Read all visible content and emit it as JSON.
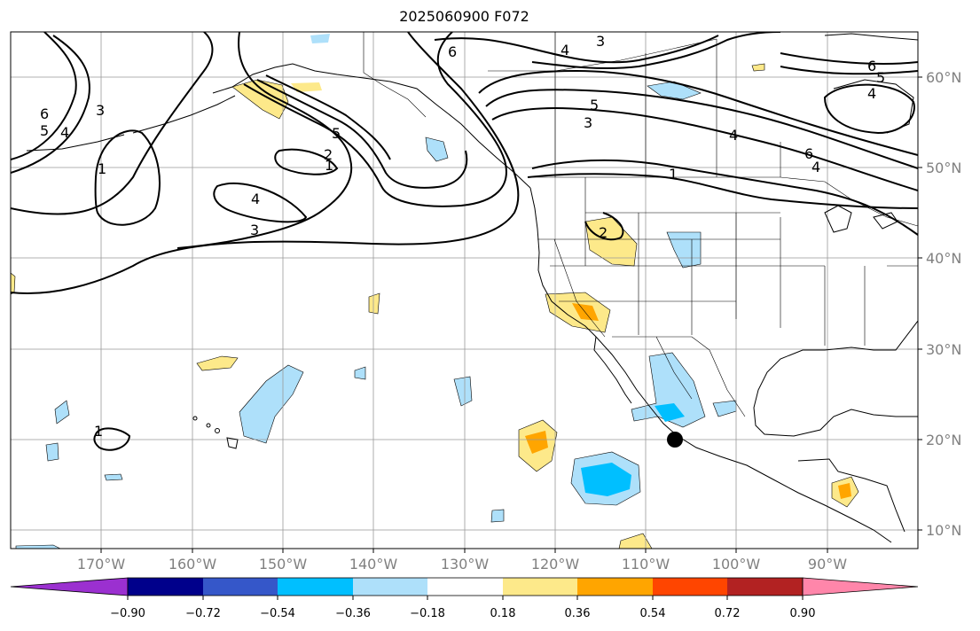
{
  "title": "2025060900 F072",
  "map": {
    "lon_range": [
      -180,
      -80
    ],
    "lat_range": [
      8,
      65
    ],
    "grid": true,
    "lat_labels": [
      "10°N",
      "20°N",
      "30°N",
      "40°N",
      "50°N",
      "60°N"
    ],
    "lon_labels": [
      "170°W",
      "160°W",
      "150°W",
      "140°W",
      "130°W",
      "120°W",
      "110°W",
      "100°W",
      "90°W"
    ],
    "contour_labels": [
      "6",
      "5",
      "4",
      "3",
      "1",
      "5",
      "2",
      "1",
      "4",
      "3",
      "6",
      "4",
      "3",
      "6",
      "5",
      "4",
      "5",
      "3",
      "6",
      "4",
      "1",
      "2",
      "1",
      "4"
    ],
    "marker": {
      "lon": -107,
      "lat": 20
    }
  },
  "colorbar": {
    "ticks": [
      "−0.90",
      "−0.72",
      "−0.54",
      "−0.36",
      "−0.18",
      "0.18",
      "0.36",
      "0.54",
      "0.72",
      "0.90"
    ],
    "colors": [
      "#9b30d0",
      "#00008b",
      "#3557c9",
      "#00bfff",
      "#aee0fa",
      "#ffffff",
      "#fde98a",
      "#ffa500",
      "#ff4500",
      "#b22222",
      "#ff86aa"
    ]
  }
}
